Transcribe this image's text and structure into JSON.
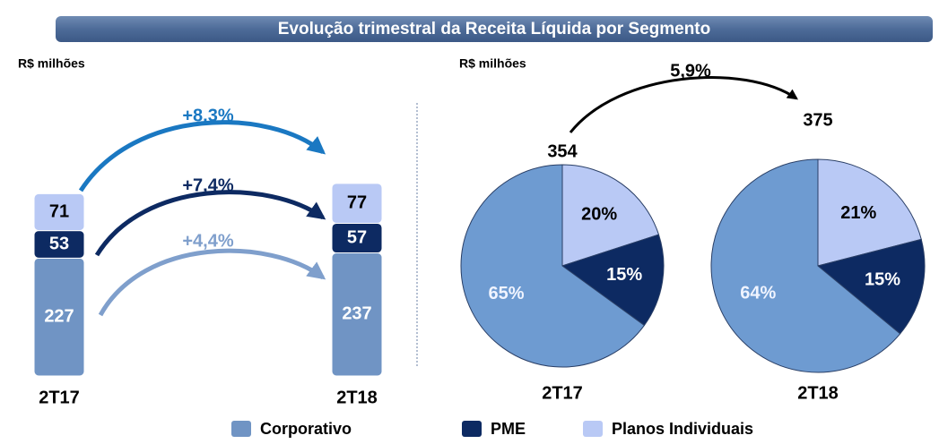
{
  "header": {
    "title": "Evolução trimestral da Receita Líquida por Segmento"
  },
  "chart_data": [
    {
      "type": "bar",
      "unit": "R$ milhões",
      "categories": [
        "2T17",
        "2T18"
      ],
      "series": [
        {
          "name": "Corporativo",
          "color": "#7094c4",
          "values": [
            227,
            237
          ]
        },
        {
          "name": "PME",
          "color": "#0d2a62",
          "values": [
            53,
            57
          ]
        },
        {
          "name": "Planos Individuais",
          "color": "#b9c9f5",
          "values": [
            71,
            77
          ]
        }
      ],
      "annotations": [
        {
          "text": "+8,3%",
          "color": "#1a78c2"
        },
        {
          "text": "+7,4%",
          "color": "#0d2a62"
        },
        {
          "text": "+4,4%",
          "color": "#7f9fcc"
        }
      ]
    },
    {
      "type": "pie",
      "unit": "R$ milhões",
      "growth": "5,9%",
      "colors": [
        "#6e9bd1",
        "#0d2a62",
        "#b9c9f5"
      ],
      "pies": [
        {
          "label": "2T17",
          "total": 354,
          "values": [
            65,
            15,
            20
          ],
          "value_labels": [
            "65%",
            "15%",
            "20%"
          ]
        },
        {
          "label": "2T18",
          "total": 375,
          "values": [
            64,
            15,
            21
          ],
          "value_labels": [
            "64%",
            "15%",
            "21%"
          ]
        }
      ]
    }
  ]
}
